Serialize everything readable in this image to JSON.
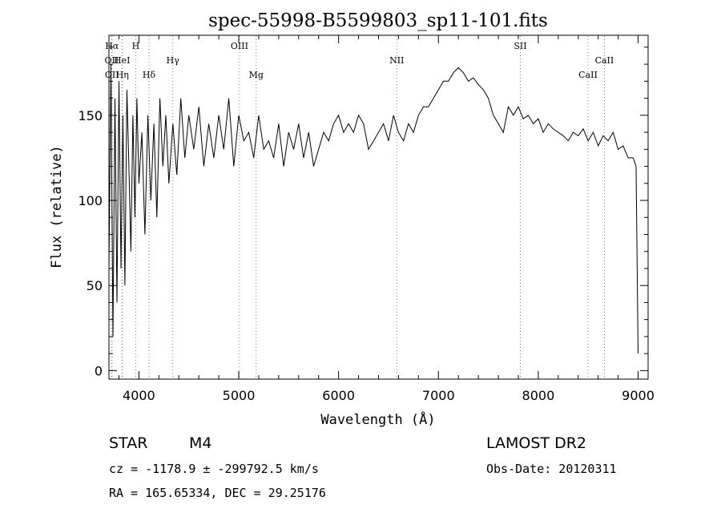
{
  "chart_data": {
    "type": "line",
    "title": "spec-55998-B5599803_sp11-101.fits",
    "xlabel": "Wavelength (Å)",
    "ylabel": "Flux (relative)",
    "xlim": [
      3700,
      9100
    ],
    "ylim": [
      -5,
      197
    ],
    "x_ticks": [
      4000,
      5000,
      6000,
      7000,
      8000,
      9000
    ],
    "y_ticks": [
      0,
      50,
      100,
      150
    ],
    "grid": false,
    "series": [
      {
        "color": "#000000",
        "x": [
          3700,
          3720,
          3740,
          3760,
          3780,
          3800,
          3820,
          3840,
          3860,
          3880,
          3900,
          3920,
          3940,
          3960,
          3980,
          4000,
          4030,
          4060,
          4090,
          4120,
          4150,
          4180,
          4210,
          4240,
          4270,
          4300,
          4340,
          4380,
          4420,
          4460,
          4500,
          4550,
          4600,
          4650,
          4700,
          4750,
          4800,
          4850,
          4900,
          4950,
          5000,
          5050,
          5100,
          5150,
          5200,
          5250,
          5300,
          5350,
          5400,
          5450,
          5500,
          5550,
          5600,
          5650,
          5700,
          5750,
          5800,
          5850,
          5900,
          5950,
          6000,
          6050,
          6100,
          6150,
          6200,
          6250,
          6300,
          6350,
          6400,
          6450,
          6500,
          6550,
          6600,
          6650,
          6700,
          6750,
          6800,
          6850,
          6900,
          6950,
          7000,
          7050,
          7100,
          7150,
          7200,
          7250,
          7300,
          7350,
          7400,
          7450,
          7500,
          7550,
          7600,
          7650,
          7700,
          7750,
          7800,
          7850,
          7900,
          7950,
          8000,
          8050,
          8100,
          8150,
          8200,
          8250,
          8300,
          8350,
          8400,
          8450,
          8500,
          8550,
          8600,
          8650,
          8700,
          8750,
          8800,
          8850,
          8900,
          8950,
          8980,
          9000
        ],
        "y": [
          60,
          180,
          20,
          160,
          40,
          170,
          60,
          150,
          50,
          165,
          120,
          70,
          150,
          90,
          160,
          110,
          140,
          80,
          150,
          100,
          145,
          90,
          160,
          120,
          150,
          110,
          145,
          115,
          160,
          125,
          150,
          130,
          155,
          120,
          145,
          125,
          150,
          130,
          160,
          120,
          150,
          135,
          140,
          125,
          150,
          130,
          135,
          125,
          145,
          120,
          140,
          130,
          145,
          125,
          140,
          120,
          130,
          140,
          135,
          145,
          150,
          140,
          145,
          140,
          150,
          145,
          130,
          135,
          140,
          145,
          135,
          150,
          140,
          135,
          145,
          140,
          150,
          155,
          155,
          160,
          165,
          170,
          170,
          175,
          178,
          175,
          170,
          172,
          168,
          165,
          160,
          150,
          145,
          140,
          155,
          150,
          155,
          148,
          150,
          145,
          148,
          140,
          145,
          142,
          140,
          138,
          135,
          140,
          138,
          142,
          135,
          140,
          132,
          138,
          135,
          140,
          130,
          132,
          125,
          125,
          120,
          10
        ]
      }
    ],
    "reference_lines": [
      {
        "label": "Hα",
        "x": 3730,
        "label_row": 1
      },
      {
        "label": "OII",
        "x": 3727,
        "label_row": 2
      },
      {
        "label": "OII",
        "x": 3730,
        "label_row": 3
      },
      {
        "label": "HeI",
        "x": 3830,
        "label_row": 2
      },
      {
        "label": "Hη",
        "x": 3835,
        "label_row": 3
      },
      {
        "label": "H",
        "x": 3968,
        "label_row": 1
      },
      {
        "label": "Hδ",
        "x": 4101,
        "label_row": 3
      },
      {
        "label": "Hγ",
        "x": 4340,
        "label_row": 2
      },
      {
        "label": "OIII",
        "x": 5007,
        "label_row": 1
      },
      {
        "label": "Mg",
        "x": 5175,
        "label_row": 3
      },
      {
        "label": "NII",
        "x": 6583,
        "label_row": 2
      },
      {
        "label": "SII",
        "x": 7820,
        "label_row": 1
      },
      {
        "label": "CaII",
        "x": 8498,
        "label_row": 3
      },
      {
        "label": "CaII",
        "x": 8662,
        "label_row": 2
      }
    ]
  },
  "info": {
    "object_class": "STAR",
    "subclass": "M4",
    "survey": "LAMOST DR2",
    "cz": "cz = -1178.9 ± -299792.5 km/s",
    "obs_date": "Obs-Date: 20120311",
    "coords": "RA = 165.65334, DEC =  29.25176"
  },
  "colors": {
    "spectrum": "#000000",
    "reference_line": "#e05a5a"
  }
}
